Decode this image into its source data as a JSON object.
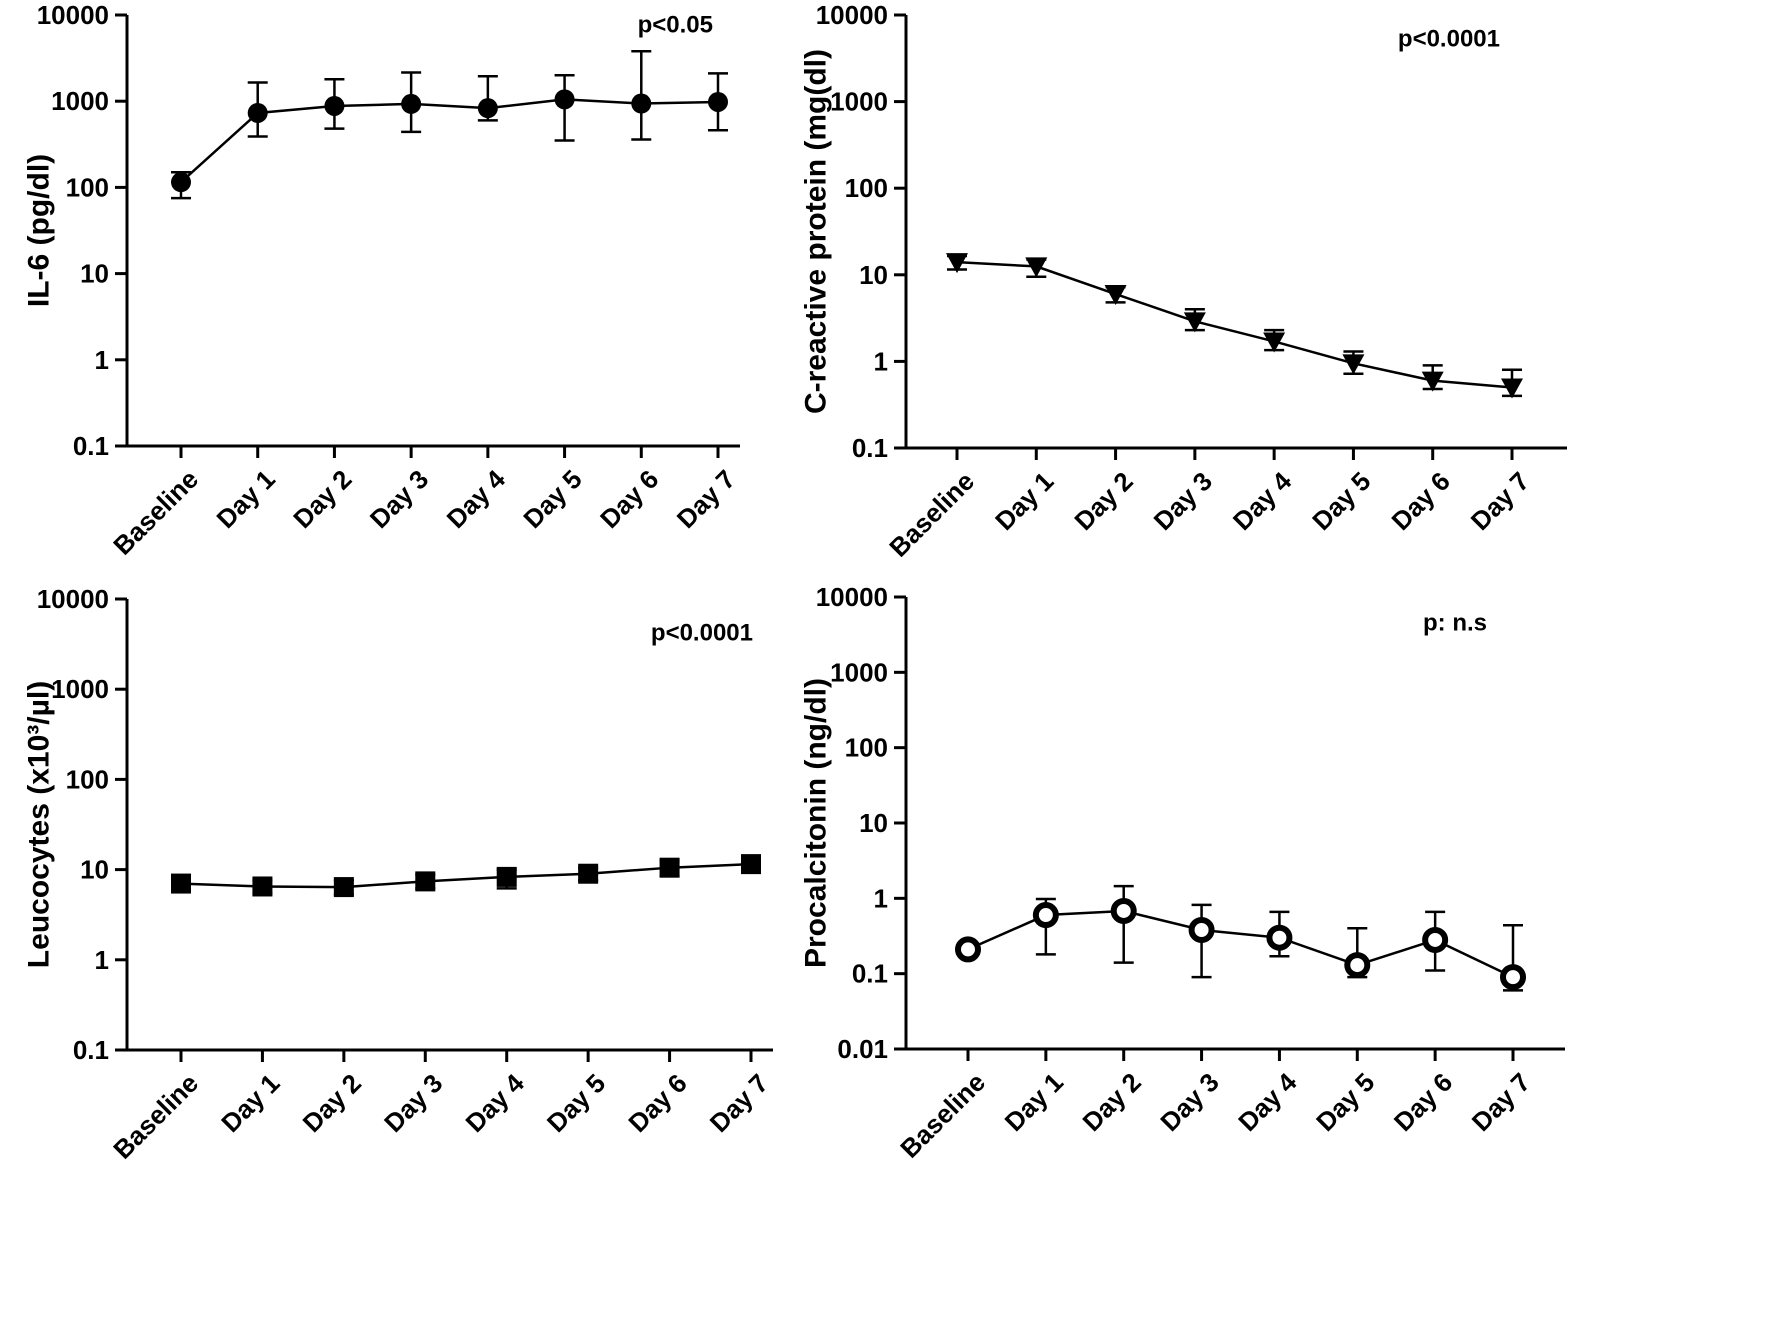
{
  "chart_data": [
    {
      "type": "line",
      "ylabel": "IL-6 (pg/dl)",
      "annotation": "p<0.05",
      "yscale": "log",
      "ylim": [
        0.1,
        10000
      ],
      "yticks": [
        "0.1",
        "1",
        "10",
        "100",
        "1000",
        "10000"
      ],
      "categories": [
        "Baseline",
        "Day 1",
        "Day 2",
        "Day 3",
        "Day 4",
        "Day 5",
        "Day 6",
        "Day 7"
      ],
      "marker": "circle-filled",
      "values": [
        115,
        730,
        880,
        930,
        830,
        1050,
        940,
        980
      ],
      "err_low": [
        75,
        390,
        480,
        440,
        600,
        350,
        360,
        460
      ],
      "err_high": [
        150,
        1650,
        1800,
        2150,
        1950,
        2000,
        3800,
        2100
      ]
    },
    {
      "type": "line",
      "ylabel": "C-reactive protein (mg(dl)",
      "annotation": "p<0.0001",
      "yscale": "log",
      "ylim": [
        0.1,
        10000
      ],
      "yticks": [
        "0.1",
        "1",
        "10",
        "100",
        "1000",
        "10000"
      ],
      "categories": [
        "Baseline",
        "Day 1",
        "Day 2",
        "Day 3",
        "Day 4",
        "Day 5",
        "Day 6",
        "Day 7"
      ],
      "marker": "triangle-down-filled",
      "values": [
        14,
        12.5,
        6,
        2.9,
        1.7,
        0.95,
        0.6,
        0.5
      ],
      "err_low": [
        11.5,
        9.5,
        4.8,
        2.3,
        1.35,
        0.72,
        0.48,
        0.4
      ],
      "err_high": [
        16.5,
        15,
        7.2,
        4,
        2.3,
        1.3,
        0.9,
        0.8
      ]
    },
    {
      "type": "line",
      "ylabel": "Leucocytes (x10³/µl)",
      "annotation": "p<0.0001",
      "yscale": "log",
      "ylim": [
        0.1,
        10000
      ],
      "yticks": [
        "0.1",
        "1",
        "10",
        "100",
        "1000",
        "10000"
      ],
      "categories": [
        "Baseline",
        "Day 1",
        "Day 2",
        "Day 3",
        "Day 4",
        "Day 5",
        "Day 6",
        "Day 7"
      ],
      "marker": "square-filled",
      "values": [
        7,
        6.5,
        6.4,
        7.4,
        8.3,
        9,
        10.5,
        11.5
      ],
      "err_low": [
        5.8,
        5.5,
        5.3,
        6.2,
        6.2,
        7.6,
        8.5,
        9.3
      ],
      "err_high": [
        8.3,
        7.6,
        7.6,
        8.8,
        10,
        10.5,
        12.5,
        14
      ]
    },
    {
      "type": "line",
      "ylabel": "Procalcitonin (ng/dl)",
      "annotation": "p: n.s",
      "yscale": "log",
      "ylim": [
        0.01,
        10000
      ],
      "yticks": [
        "0.01",
        "0.1",
        "1",
        "10",
        "100",
        "1000",
        "10000"
      ],
      "categories": [
        "Baseline",
        "Day 1",
        "Day 2",
        "Day 3",
        "Day 4",
        "Day 5",
        "Day 6",
        "Day 7"
      ],
      "marker": "circle-open",
      "values": [
        0.21,
        0.6,
        0.68,
        0.38,
        0.3,
        0.13,
        0.28,
        0.09
      ],
      "err_low": [
        0.18,
        0.18,
        0.14,
        0.09,
        0.17,
        0.09,
        0.11,
        0.06
      ],
      "err_high": [
        0.25,
        0.98,
        1.45,
        0.82,
        0.66,
        0.4,
        0.66,
        0.44
      ]
    }
  ]
}
